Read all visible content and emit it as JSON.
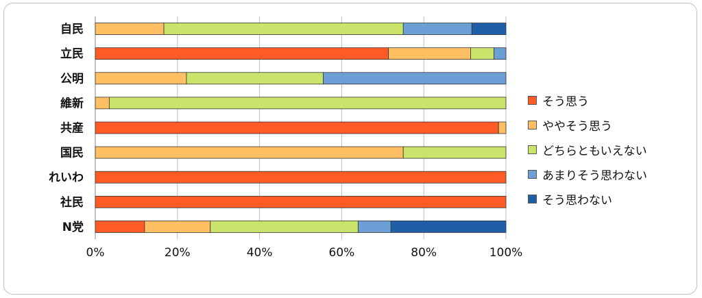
{
  "chart_data": {
    "type": "bar",
    "orientation": "horizontal",
    "stacked": "percent",
    "categories": [
      "自民",
      "立民",
      "公明",
      "維新",
      "共産",
      "国民",
      "れいわ",
      "社民",
      "N党"
    ],
    "series": [
      {
        "name": "そう思う",
        "color": "#FF5B27",
        "values": [
          0,
          71.4,
          0,
          0,
          98.2,
          0,
          100,
          100,
          12
        ]
      },
      {
        "name": "ややそう思う",
        "color": "#FFBF62",
        "values": [
          16.7,
          20,
          22.2,
          3.4,
          1.8,
          75,
          0,
          0,
          16
        ]
      },
      {
        "name": "どちらともいえない",
        "color": "#C9E36B",
        "values": [
          58.3,
          5.7,
          33.3,
          96.6,
          0,
          25,
          0,
          0,
          36
        ]
      },
      {
        "name": "あまりそう思わない",
        "color": "#6B9FD6",
        "values": [
          16.7,
          2.9,
          44.5,
          0,
          0,
          0,
          0,
          0,
          8
        ]
      },
      {
        "name": "そう思わない",
        "color": "#1F5FA8",
        "values": [
          8.3,
          0,
          0,
          0,
          0,
          0,
          0,
          0,
          28
        ]
      }
    ],
    "x_ticks": [
      "0%",
      "20%",
      "40%",
      "60%",
      "80%",
      "100%"
    ],
    "xlim": [
      0,
      100
    ],
    "grid": true,
    "legend": "right"
  }
}
